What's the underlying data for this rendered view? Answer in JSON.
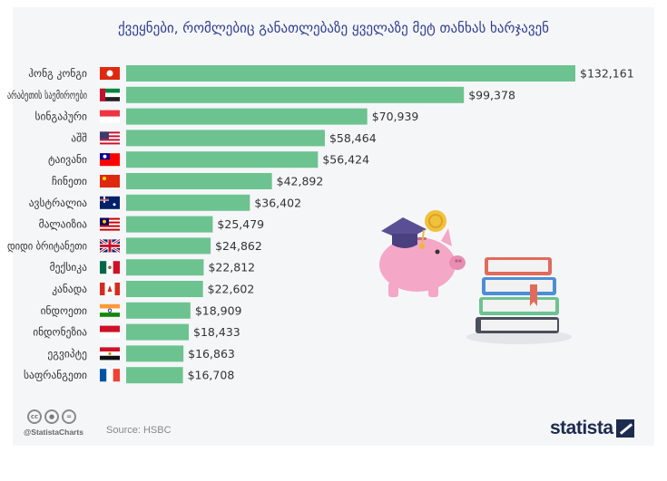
{
  "chart_data": {
    "type": "bar",
    "orientation": "horizontal",
    "title": "ქვეყნები, რომლებიც განათლებაზე ყველაზე მეტ თანხას ხარჯავენ",
    "xlabel": "",
    "ylabel": "",
    "xlim": [
      0,
      132161
    ],
    "grid": false,
    "bar_color": "#6cc390",
    "categories": [
      "ჰონგ კონგი",
      "არაბეთის საემიროები",
      "სინგაპური",
      "აშშ",
      "ტაივანი",
      "ჩინეთი",
      "ავსტრალია",
      "მალაიზია",
      "დიდი ბრიტანეთი",
      "მექსიკა",
      "კანადა",
      "ინდოეთი",
      "ინდონეზია",
      "ეგვიპტე",
      "საფრანგეთი"
    ],
    "values": [
      132161,
      99378,
      70939,
      58464,
      56424,
      42892,
      36402,
      25479,
      24862,
      22812,
      22602,
      18909,
      18433,
      16863,
      16708
    ],
    "value_labels": [
      "$132,161",
      "$99,378",
      "$70,939",
      "$58,464",
      "$56,424",
      "$42,892",
      "$36,402",
      "$25,479",
      "$24,862",
      "$22,812",
      "$22,602",
      "$18,909",
      "$18,433",
      "$16,863",
      "$16,708"
    ],
    "flags": [
      "hk",
      "ae",
      "sg",
      "us",
      "tw",
      "cn",
      "au",
      "my",
      "gb",
      "mx",
      "ca",
      "in",
      "id",
      "eg",
      "fr"
    ]
  },
  "footer": {
    "handle": "@StatistaCharts",
    "source": "Source: HSBC",
    "brand": "statista",
    "cc_icons": [
      "cc-icon",
      "by-icon",
      "nd-icon"
    ]
  },
  "illustration": {
    "icons": [
      "piggy-bank-icon",
      "graduation-cap-icon",
      "coin-icon",
      "book-stack-icon"
    ]
  }
}
